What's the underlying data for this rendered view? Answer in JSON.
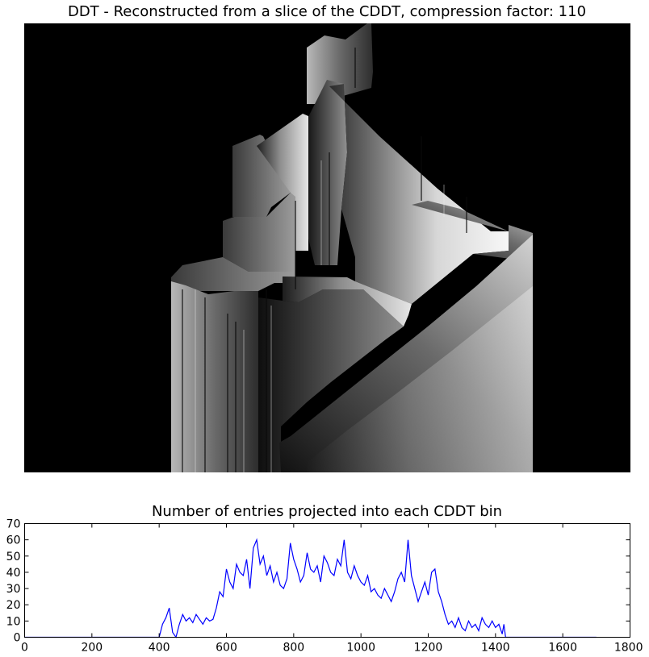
{
  "chart_data": [
    {
      "type": "heatmap",
      "title": "DDT - Reconstructed from a slice of the CDDT, compression factor: 110",
      "colormap": "grayscale",
      "background_color": "#000000",
      "axes_visible": false,
      "grid": false
    },
    {
      "type": "line",
      "title": "Number of entries projected into each CDDT bin",
      "xlabel": "",
      "ylabel": "",
      "xlim": [
        0,
        1800
      ],
      "ylim": [
        0,
        70
      ],
      "xticks": [
        0,
        200,
        400,
        600,
        800,
        1000,
        1200,
        1400,
        1600,
        1800
      ],
      "yticks": [
        0,
        10,
        20,
        30,
        40,
        50,
        60,
        70
      ],
      "grid": false,
      "series": [
        {
          "color": "#0000ff",
          "x": [
            0,
            400,
            410,
            420,
            430,
            440,
            450,
            460,
            470,
            480,
            490,
            500,
            510,
            520,
            530,
            540,
            550,
            560,
            570,
            580,
            590,
            600,
            610,
            620,
            630,
            640,
            650,
            660,
            670,
            680,
            690,
            700,
            710,
            720,
            730,
            740,
            750,
            760,
            770,
            780,
            790,
            800,
            810,
            820,
            830,
            840,
            850,
            860,
            870,
            880,
            890,
            900,
            910,
            920,
            930,
            940,
            950,
            960,
            970,
            980,
            990,
            1000,
            1010,
            1020,
            1030,
            1040,
            1050,
            1060,
            1070,
            1080,
            1090,
            1100,
            1110,
            1120,
            1130,
            1140,
            1150,
            1160,
            1170,
            1180,
            1190,
            1200,
            1210,
            1220,
            1230,
            1240,
            1250,
            1260,
            1270,
            1280,
            1290,
            1300,
            1310,
            1320,
            1330,
            1340,
            1350,
            1360,
            1370,
            1380,
            1390,
            1400,
            1410,
            1420,
            1425,
            1430,
            1700
          ],
          "y": [
            0,
            0,
            8,
            12,
            18,
            3,
            0,
            8,
            14,
            10,
            12,
            9,
            14,
            11,
            8,
            12,
            10,
            11,
            18,
            28,
            25,
            42,
            34,
            30,
            45,
            40,
            38,
            48,
            30,
            55,
            60,
            45,
            50,
            38,
            44,
            34,
            40,
            32,
            30,
            36,
            58,
            48,
            42,
            34,
            38,
            52,
            42,
            40,
            44,
            34,
            50,
            46,
            40,
            38,
            48,
            44,
            60,
            40,
            36,
            44,
            38,
            34,
            32,
            38,
            28,
            30,
            26,
            24,
            30,
            26,
            22,
            28,
            36,
            40,
            34,
            60,
            38,
            30,
            22,
            28,
            34,
            26,
            40,
            42,
            28,
            22,
            14,
            8,
            10,
            6,
            12,
            6,
            4,
            10,
            6,
            8,
            4,
            12,
            8,
            6,
            10,
            6,
            8,
            2,
            8,
            0,
            0
          ]
        }
      ]
    }
  ]
}
